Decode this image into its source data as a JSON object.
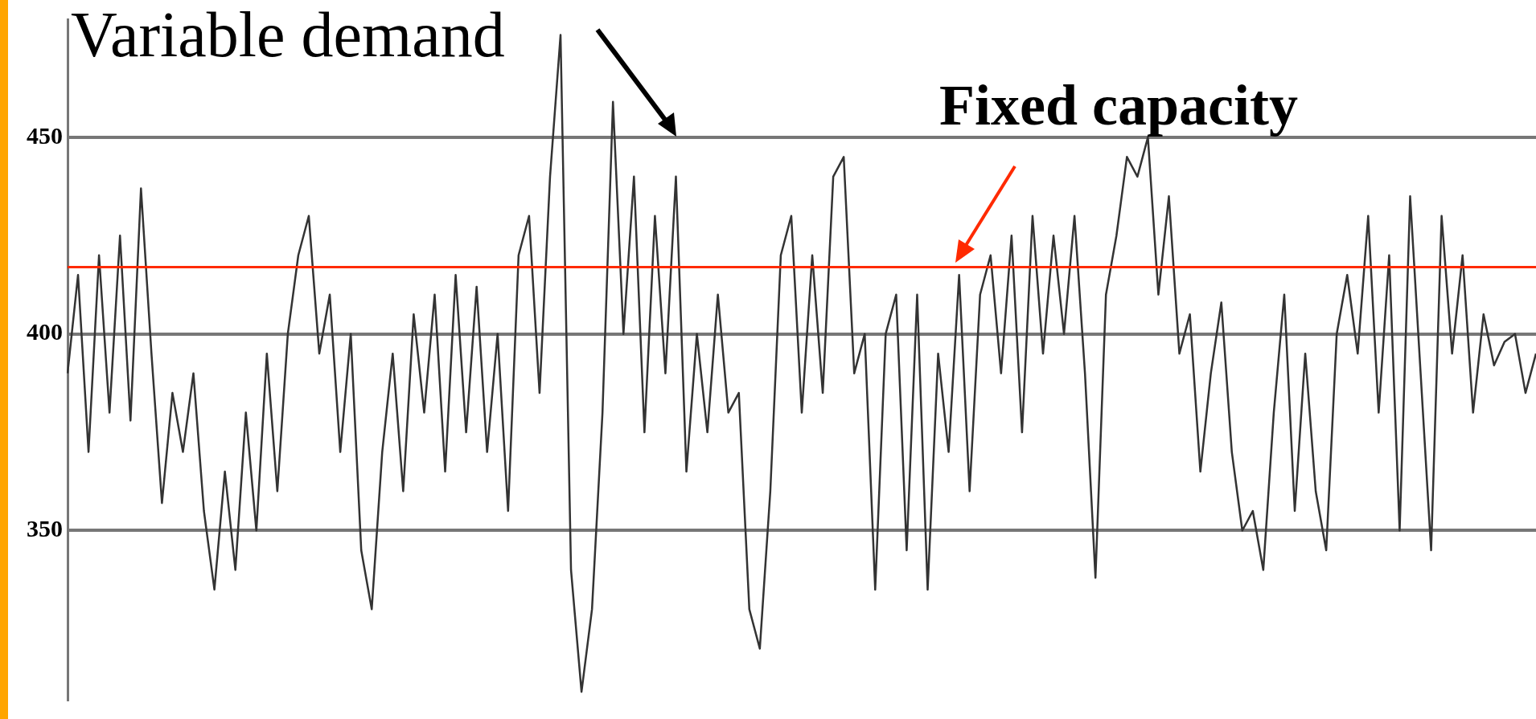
{
  "chart_data": {
    "type": "line",
    "categories": [
      null,
      null,
      null,
      null,
      null,
      null,
      null,
      null,
      null,
      null,
      null,
      null,
      null,
      null,
      null,
      null,
      null,
      null,
      null,
      null,
      null,
      null,
      null,
      null,
      null,
      null,
      null,
      null,
      null,
      null,
      null,
      null,
      null,
      null,
      null,
      null,
      null,
      null,
      null,
      null,
      null,
      null,
      null,
      null,
      null,
      null,
      null,
      null,
      null,
      null,
      null,
      null,
      null,
      null,
      null,
      null,
      null,
      null,
      null,
      null,
      null,
      null,
      null,
      null,
      null,
      null,
      null,
      null,
      null,
      null,
      null,
      null,
      null,
      null,
      null,
      null,
      null,
      null,
      null,
      null,
      null,
      null,
      null,
      null,
      null,
      null,
      null,
      null,
      null,
      null,
      null,
      null,
      null,
      null,
      null,
      null,
      null,
      null,
      null,
      null,
      null,
      null,
      null,
      null,
      null,
      null,
      null,
      null,
      null,
      null,
      null,
      null,
      null,
      null,
      null,
      null,
      null,
      null,
      null,
      null,
      null,
      null,
      null,
      null,
      null,
      null,
      null,
      null,
      null,
      null,
      null,
      null,
      null,
      null,
      null,
      null,
      null,
      null,
      null,
      null,
      null
    ],
    "series": [
      {
        "color": "#333333",
        "values": [
          390,
          415,
          370,
          420,
          380,
          425,
          378,
          437,
          395,
          357,
          385,
          370,
          390,
          355,
          335,
          365,
          340,
          380,
          350,
          395,
          360,
          400,
          420,
          430,
          395,
          410,
          370,
          400,
          345,
          330,
          370,
          395,
          360,
          405,
          380,
          410,
          365,
          415,
          375,
          412,
          370,
          400,
          355,
          420,
          430,
          385,
          440,
          476,
          340,
          309,
          330,
          380,
          459,
          400,
          440,
          375,
          430,
          390,
          440,
          365,
          400,
          375,
          410,
          380,
          385,
          330,
          320,
          360,
          420,
          430,
          380,
          420,
          385,
          440,
          445,
          390,
          400,
          335,
          400,
          410,
          345,
          410,
          335,
          395,
          370,
          415,
          360,
          410,
          420,
          390,
          425,
          375,
          430,
          395,
          425,
          400,
          430,
          390,
          338,
          410,
          425,
          445,
          440,
          450,
          410,
          435,
          395,
          405,
          365,
          390,
          408,
          370,
          350,
          355,
          340,
          380,
          410,
          355,
          395,
          360,
          345,
          400,
          415,
          395,
          430,
          380,
          420,
          350,
          435,
          390,
          345,
          430,
          395,
          420,
          380,
          405,
          392,
          398,
          400,
          385,
          395
        ]
      }
    ],
    "ylim": [
      307,
      480
    ],
    "yticks": [
      350,
      400,
      450
    ],
    "grid": "y",
    "marker": "none",
    "line_style": "solid",
    "ref_lines": [
      {
        "axis": "y",
        "value": 417,
        "label": "Fixed capacity",
        "color": "#ff2a00"
      }
    ],
    "annotations": [
      "Variable demand"
    ]
  }
}
